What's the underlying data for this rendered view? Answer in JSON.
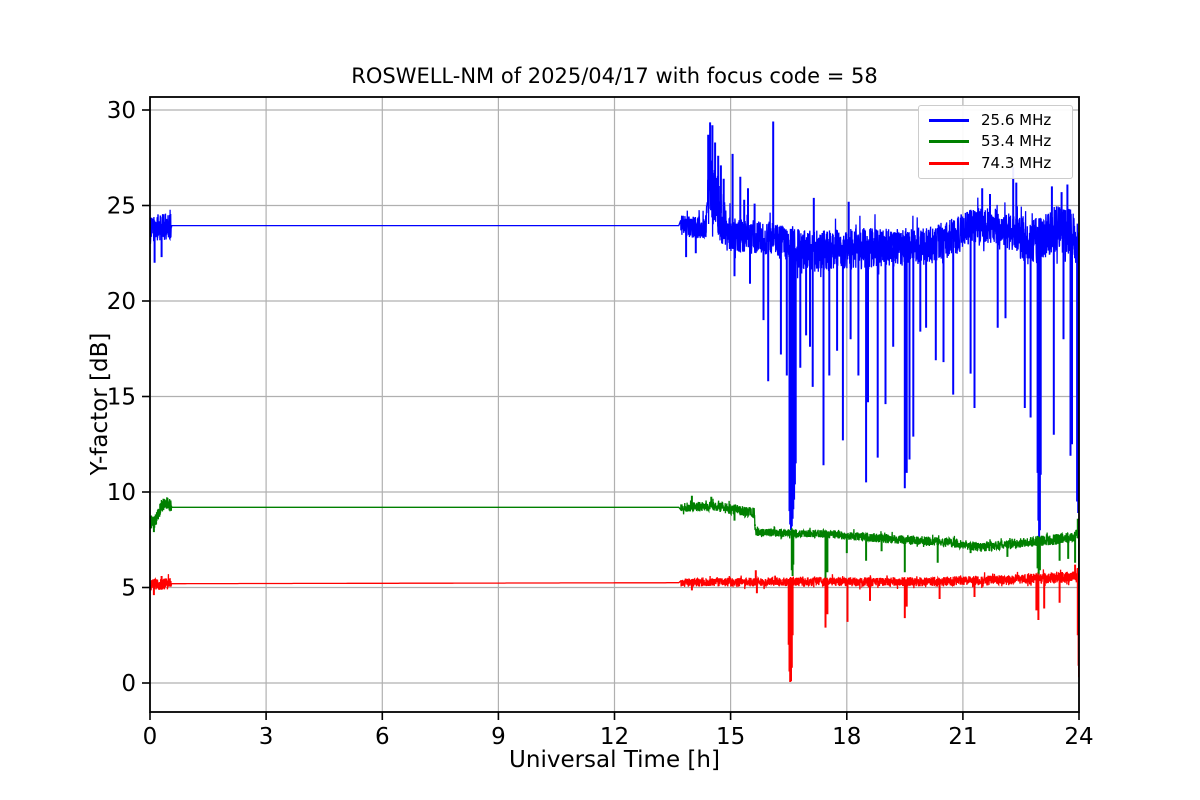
{
  "chart_data": {
    "type": "line",
    "title": "ROSWELL-NM of 2025/04/17 with focus code = 58",
    "xlabel": "Universal Time [h]",
    "ylabel": "Y-factor [dB]",
    "xlim": [
      0,
      24
    ],
    "ylim": [
      -1.5,
      30.7
    ],
    "xticks": [
      0,
      3,
      6,
      9,
      12,
      15,
      18,
      21,
      24
    ],
    "yticks": [
      0,
      5,
      10,
      15,
      20,
      25,
      30
    ],
    "grid": true,
    "grid_color": "#b0b0b0",
    "background_color": "#ffffff",
    "text_color": "#000000",
    "legend": {
      "position": "upper right",
      "entries": [
        {
          "label": "25.6 MHz",
          "color": "#0000ff"
        },
        {
          "label": "53.4 MHz",
          "color": "#008000"
        },
        {
          "label": "74.3 MHz",
          "color": "#ff0000"
        }
      ]
    },
    "series": [
      {
        "name": "25.6 MHz",
        "color": "#0000ff",
        "description": "flat at 24.0 dB from 0.55h to 13.7h; noisy start cluster 0-0.55h; noisy after 13.7h with spikes to 29.4 dB near 14.5h and 16.1h, then noisy band ~22-24.5 dB with deep dropouts (16.55h to ~8 dB, 23.0h to ~6.3 dB, end 24h to ~8.9 dB)",
        "base": [
          [
            0,
            23.6
          ],
          [
            0.08,
            23.8
          ],
          [
            0.55,
            23.95
          ],
          [
            13.7,
            23.95
          ],
          [
            14.35,
            23.8
          ],
          [
            14.45,
            25.8
          ],
          [
            14.55,
            26.0
          ],
          [
            14.65,
            25.2
          ],
          [
            14.8,
            24.3
          ],
          [
            15.0,
            23.6
          ],
          [
            15.3,
            23.4
          ],
          [
            15.7,
            23.3
          ],
          [
            16.05,
            23.3
          ],
          [
            16.5,
            22.9
          ],
          [
            16.75,
            22.7
          ],
          [
            17.3,
            22.6
          ],
          [
            18.2,
            22.7
          ],
          [
            19.3,
            22.8
          ],
          [
            20.1,
            22.9
          ],
          [
            20.8,
            23.4
          ],
          [
            21.3,
            24.0
          ],
          [
            21.9,
            23.9
          ],
          [
            22.3,
            23.5
          ],
          [
            22.7,
            23.1
          ],
          [
            23.05,
            23.2
          ],
          [
            23.4,
            23.8
          ],
          [
            23.8,
            23.6
          ],
          [
            23.95,
            23.0
          ],
          [
            24,
            22.0
          ]
        ],
        "noise": [
          [
            0,
            0.7
          ],
          [
            0.54,
            0.7
          ],
          [
            0.56,
            0.03
          ],
          [
            13.68,
            0.03
          ],
          [
            13.72,
            0.55
          ],
          [
            14.35,
            0.6
          ],
          [
            14.45,
            1.6
          ],
          [
            14.8,
            1.6
          ],
          [
            14.9,
            0.9
          ],
          [
            16.45,
            0.9
          ],
          [
            16.55,
            1.1
          ],
          [
            18.9,
            1.1
          ],
          [
            19.1,
            1.0
          ],
          [
            20.9,
            1.0
          ],
          [
            21.1,
            0.9
          ],
          [
            22.4,
            1.0
          ],
          [
            22.5,
            1.2
          ],
          [
            24,
            1.2
          ]
        ],
        "spikes": [
          [
            0.12,
            22.0
          ],
          [
            0.3,
            22.3
          ],
          [
            13.85,
            22.3
          ],
          [
            14.1,
            22.5
          ],
          [
            14.42,
            28.7
          ],
          [
            14.47,
            29.35
          ],
          [
            14.53,
            29.2
          ],
          [
            14.6,
            28.3
          ],
          [
            14.68,
            27.6
          ],
          [
            14.75,
            27.1
          ],
          [
            14.82,
            26.4
          ],
          [
            15.05,
            27.7
          ],
          [
            15.1,
            21.3
          ],
          [
            15.25,
            26.5
          ],
          [
            15.35,
            25.3
          ],
          [
            15.45,
            25.9
          ],
          [
            15.5,
            20.9
          ],
          [
            15.62,
            25.1
          ],
          [
            15.85,
            19.0
          ],
          [
            15.97,
            15.8
          ],
          [
            16.1,
            29.4
          ],
          [
            16.3,
            17.2
          ],
          [
            16.45,
            16.1
          ],
          [
            16.52,
            9.0
          ],
          [
            16.54,
            8.3
          ],
          [
            16.56,
            8.0
          ],
          [
            16.58,
            8.2
          ],
          [
            16.6,
            8.6
          ],
          [
            16.62,
            9.1
          ],
          [
            16.64,
            9.6
          ],
          [
            16.66,
            10.4
          ],
          [
            16.68,
            11.5
          ],
          [
            16.8,
            16.5
          ],
          [
            16.95,
            18.2
          ],
          [
            17.05,
            17.6
          ],
          [
            17.12,
            15.5
          ],
          [
            17.15,
            25.4
          ],
          [
            17.4,
            11.4
          ],
          [
            17.55,
            16.1
          ],
          [
            17.75,
            17.4
          ],
          [
            17.9,
            12.7
          ],
          [
            18.05,
            25.2
          ],
          [
            18.1,
            18.0
          ],
          [
            18.3,
            16.1
          ],
          [
            18.5,
            10.5
          ],
          [
            18.55,
            14.7
          ],
          [
            18.8,
            11.8
          ],
          [
            19.0,
            14.6
          ],
          [
            19.2,
            17.6
          ],
          [
            19.5,
            10.2
          ],
          [
            19.55,
            11.0
          ],
          [
            19.62,
            11.7
          ],
          [
            19.72,
            12.9
          ],
          [
            19.9,
            18.4
          ],
          [
            20.05,
            18.6
          ],
          [
            20.3,
            16.9
          ],
          [
            20.5,
            16.8
          ],
          [
            20.75,
            15.1
          ],
          [
            21.2,
            16.2
          ],
          [
            21.3,
            14.4
          ],
          [
            21.5,
            25.9
          ],
          [
            21.7,
            25.6
          ],
          [
            21.9,
            18.6
          ],
          [
            22.1,
            19.1
          ],
          [
            22.3,
            27.0
          ],
          [
            22.38,
            26.2
          ],
          [
            22.6,
            14.4
          ],
          [
            22.75,
            13.9
          ],
          [
            22.93,
            11.0
          ],
          [
            22.95,
            8.5
          ],
          [
            22.97,
            6.3
          ],
          [
            22.99,
            8.0
          ],
          [
            23.01,
            10.9
          ],
          [
            23.3,
            26.0
          ],
          [
            23.35,
            13.0
          ],
          [
            23.55,
            25.7
          ],
          [
            23.6,
            18.0
          ],
          [
            23.7,
            26.1
          ],
          [
            23.78,
            11.9
          ],
          [
            23.82,
            12.5
          ],
          [
            23.95,
            9.5
          ],
          [
            23.98,
            8.9
          ],
          [
            24,
            9.5
          ]
        ]
      },
      {
        "name": "53.4 MHz",
        "color": "#008000",
        "description": "flat at 9.2 dB from 0.55h to 13.7h; noisy start cluster 0-0.5h (8-9.6 dB); noisy after 13.7h, step down to ~7.9 dB at 15.6h, slow decline to ~7.1 dB near 21.5h, recovery to ~7.9 dB at 24h, dropouts to 4.5-6.5 dB",
        "base": [
          [
            0,
            8.5
          ],
          [
            0.12,
            8.4
          ],
          [
            0.3,
            9.3
          ],
          [
            0.45,
            9.4
          ],
          [
            0.55,
            9.2
          ],
          [
            13.7,
            9.2
          ],
          [
            14.6,
            9.25
          ],
          [
            15.3,
            9.0
          ],
          [
            15.61,
            8.9
          ],
          [
            15.64,
            7.9
          ],
          [
            16.3,
            7.85
          ],
          [
            17.5,
            7.8
          ],
          [
            19.0,
            7.55
          ],
          [
            20.5,
            7.4
          ],
          [
            21.5,
            7.1
          ],
          [
            22.3,
            7.3
          ],
          [
            23.3,
            7.5
          ],
          [
            23.85,
            7.6
          ],
          [
            24,
            7.9
          ]
        ],
        "noise": [
          [
            0,
            0.35
          ],
          [
            0.54,
            0.35
          ],
          [
            0.56,
            0.03
          ],
          [
            13.68,
            0.03
          ],
          [
            13.72,
            0.25
          ],
          [
            15.6,
            0.28
          ],
          [
            15.64,
            0.2
          ],
          [
            22.5,
            0.25
          ],
          [
            24,
            0.3
          ]
        ],
        "spikes": [
          [
            0.1,
            7.9
          ],
          [
            0.35,
            9.65
          ],
          [
            14.0,
            9.8
          ],
          [
            14.5,
            9.75
          ],
          [
            15.1,
            8.5
          ],
          [
            15.63,
            8.3
          ],
          [
            16.58,
            5.9
          ],
          [
            16.6,
            5.6
          ],
          [
            16.62,
            6.2
          ],
          [
            17.45,
            4.5
          ],
          [
            17.5,
            5.8
          ],
          [
            18.0,
            6.8
          ],
          [
            18.5,
            6.4
          ],
          [
            18.9,
            6.9
          ],
          [
            19.5,
            5.8
          ],
          [
            20.35,
            6.3
          ],
          [
            21.2,
            6.8
          ],
          [
            22.15,
            6.6
          ],
          [
            22.93,
            6.0
          ],
          [
            22.96,
            5.4
          ],
          [
            22.99,
            5.9
          ],
          [
            23.5,
            6.4
          ],
          [
            23.72,
            6.5
          ],
          [
            23.9,
            6.3
          ],
          [
            23.97,
            8.6
          ],
          [
            24,
            6.0
          ]
        ]
      },
      {
        "name": "74.3 MHz",
        "color": "#ff0000",
        "description": "flat at 5.25 dB from 0.5h to 13.7h; noisy start cluster 0-0.5h; noisy after 13.7h around 5.3-5.6 dB, deep dropout to 0 dB at 16.55h, dips to ~3 dB at 17.45h/18h/19.5h/22.9h, final drop to ~0.3 dB at 24h",
        "base": [
          [
            0,
            5.15
          ],
          [
            0.5,
            5.2
          ],
          [
            13.7,
            5.25
          ],
          [
            16.0,
            5.3
          ],
          [
            18.0,
            5.3
          ],
          [
            20.0,
            5.3
          ],
          [
            22.0,
            5.4
          ],
          [
            23.3,
            5.5
          ],
          [
            23.9,
            5.55
          ],
          [
            24,
            5.6
          ]
        ],
        "noise": [
          [
            0,
            0.3
          ],
          [
            0.54,
            0.3
          ],
          [
            0.56,
            0.03
          ],
          [
            13.68,
            0.03
          ],
          [
            13.72,
            0.22
          ],
          [
            22.0,
            0.25
          ],
          [
            24,
            0.3
          ]
        ],
        "spikes": [
          [
            0.1,
            4.6
          ],
          [
            0.3,
            5.6
          ],
          [
            14.0,
            4.85
          ],
          [
            15.65,
            5.9
          ],
          [
            15.68,
            4.7
          ],
          [
            16.5,
            2.0
          ],
          [
            16.52,
            0.6
          ],
          [
            16.54,
            0.05
          ],
          [
            16.56,
            0.1
          ],
          [
            16.58,
            0.8
          ],
          [
            16.6,
            2.5
          ],
          [
            17.45,
            2.9
          ],
          [
            17.5,
            3.6
          ],
          [
            18.02,
            3.2
          ],
          [
            18.6,
            4.3
          ],
          [
            19.5,
            3.4
          ],
          [
            19.55,
            4.0
          ],
          [
            20.4,
            4.4
          ],
          [
            21.3,
            4.5
          ],
          [
            22.9,
            3.8
          ],
          [
            22.95,
            3.3
          ],
          [
            23.1,
            3.9
          ],
          [
            23.5,
            4.2
          ],
          [
            23.9,
            6.2
          ],
          [
            23.97,
            2.5
          ],
          [
            23.99,
            0.9
          ],
          [
            24,
            0.3
          ]
        ]
      }
    ]
  }
}
